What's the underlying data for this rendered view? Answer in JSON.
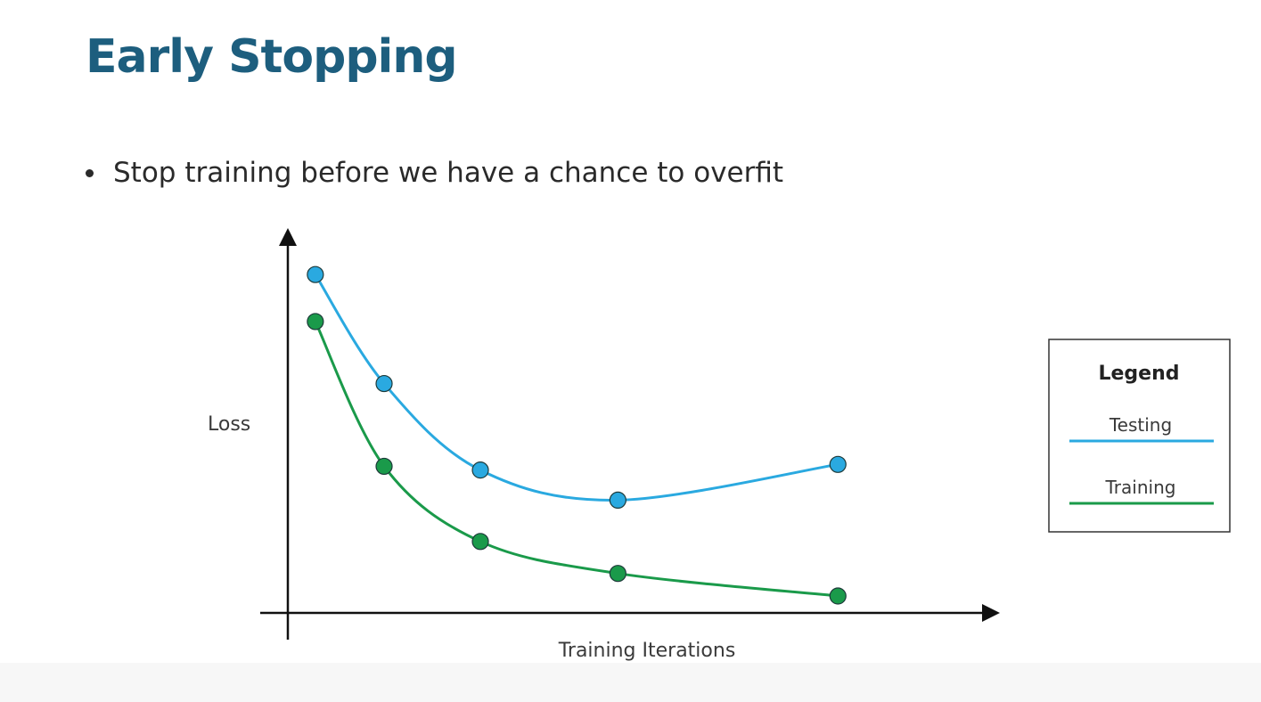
{
  "slide": {
    "title": "Early Stopping",
    "bullet": "Stop training before we have a chance to overfit"
  },
  "chart_data": {
    "type": "line",
    "xlabel": "Training Iterations",
    "ylabel": "Loss",
    "x": [
      1,
      2,
      3,
      4,
      5
    ],
    "xlim": [
      0.8,
      5.9
    ],
    "ylim": [
      0,
      10
    ],
    "grid": false,
    "series": [
      {
        "name": "Testing",
        "color": "#2aa9e0",
        "x": [
          1,
          1.5,
          2.2,
          3.2,
          4.8
        ],
        "values": [
          9,
          6.1,
          3.8,
          3.0,
          3.95
        ]
      },
      {
        "name": "Training",
        "color": "#1a9a4a",
        "x": [
          1,
          1.5,
          2.2,
          3.2,
          4.8
        ],
        "values": [
          7.75,
          3.9,
          1.9,
          1.05,
          0.45
        ]
      }
    ],
    "legend": {
      "title": "Legend",
      "placement": "right"
    }
  }
}
